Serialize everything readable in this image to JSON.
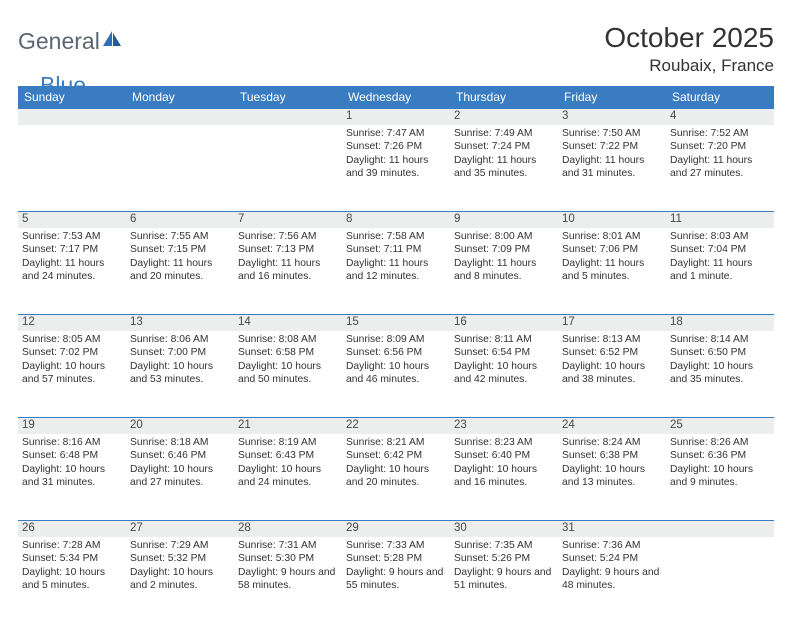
{
  "brand": {
    "name_part1": "General",
    "name_part2": "Blue"
  },
  "title": "October 2025",
  "location": "Roubaix, France",
  "colors": {
    "header_bg": "#3a7cc2",
    "header_text": "#ffffff",
    "daynum_bg": "#eceded",
    "text": "#333333",
    "border": "#3a7cc2",
    "brand_gray": "#5b6670",
    "brand_blue": "#3a7cc2"
  },
  "day_headers": [
    "Sunday",
    "Monday",
    "Tuesday",
    "Wednesday",
    "Thursday",
    "Friday",
    "Saturday"
  ],
  "weeks": [
    [
      null,
      null,
      null,
      {
        "n": "1",
        "sr": "7:47 AM",
        "ss": "7:26 PM",
        "dl": "11 hours and 39 minutes."
      },
      {
        "n": "2",
        "sr": "7:49 AM",
        "ss": "7:24 PM",
        "dl": "11 hours and 35 minutes."
      },
      {
        "n": "3",
        "sr": "7:50 AM",
        "ss": "7:22 PM",
        "dl": "11 hours and 31 minutes."
      },
      {
        "n": "4",
        "sr": "7:52 AM",
        "ss": "7:20 PM",
        "dl": "11 hours and 27 minutes."
      }
    ],
    [
      {
        "n": "5",
        "sr": "7:53 AM",
        "ss": "7:17 PM",
        "dl": "11 hours and 24 minutes."
      },
      {
        "n": "6",
        "sr": "7:55 AM",
        "ss": "7:15 PM",
        "dl": "11 hours and 20 minutes."
      },
      {
        "n": "7",
        "sr": "7:56 AM",
        "ss": "7:13 PM",
        "dl": "11 hours and 16 minutes."
      },
      {
        "n": "8",
        "sr": "7:58 AM",
        "ss": "7:11 PM",
        "dl": "11 hours and 12 minutes."
      },
      {
        "n": "9",
        "sr": "8:00 AM",
        "ss": "7:09 PM",
        "dl": "11 hours and 8 minutes."
      },
      {
        "n": "10",
        "sr": "8:01 AM",
        "ss": "7:06 PM",
        "dl": "11 hours and 5 minutes."
      },
      {
        "n": "11",
        "sr": "8:03 AM",
        "ss": "7:04 PM",
        "dl": "11 hours and 1 minute."
      }
    ],
    [
      {
        "n": "12",
        "sr": "8:05 AM",
        "ss": "7:02 PM",
        "dl": "10 hours and 57 minutes."
      },
      {
        "n": "13",
        "sr": "8:06 AM",
        "ss": "7:00 PM",
        "dl": "10 hours and 53 minutes."
      },
      {
        "n": "14",
        "sr": "8:08 AM",
        "ss": "6:58 PM",
        "dl": "10 hours and 50 minutes."
      },
      {
        "n": "15",
        "sr": "8:09 AM",
        "ss": "6:56 PM",
        "dl": "10 hours and 46 minutes."
      },
      {
        "n": "16",
        "sr": "8:11 AM",
        "ss": "6:54 PM",
        "dl": "10 hours and 42 minutes."
      },
      {
        "n": "17",
        "sr": "8:13 AM",
        "ss": "6:52 PM",
        "dl": "10 hours and 38 minutes."
      },
      {
        "n": "18",
        "sr": "8:14 AM",
        "ss": "6:50 PM",
        "dl": "10 hours and 35 minutes."
      }
    ],
    [
      {
        "n": "19",
        "sr": "8:16 AM",
        "ss": "6:48 PM",
        "dl": "10 hours and 31 minutes."
      },
      {
        "n": "20",
        "sr": "8:18 AM",
        "ss": "6:46 PM",
        "dl": "10 hours and 27 minutes."
      },
      {
        "n": "21",
        "sr": "8:19 AM",
        "ss": "6:43 PM",
        "dl": "10 hours and 24 minutes."
      },
      {
        "n": "22",
        "sr": "8:21 AM",
        "ss": "6:42 PM",
        "dl": "10 hours and 20 minutes."
      },
      {
        "n": "23",
        "sr": "8:23 AM",
        "ss": "6:40 PM",
        "dl": "10 hours and 16 minutes."
      },
      {
        "n": "24",
        "sr": "8:24 AM",
        "ss": "6:38 PM",
        "dl": "10 hours and 13 minutes."
      },
      {
        "n": "25",
        "sr": "8:26 AM",
        "ss": "6:36 PM",
        "dl": "10 hours and 9 minutes."
      }
    ],
    [
      {
        "n": "26",
        "sr": "7:28 AM",
        "ss": "5:34 PM",
        "dl": "10 hours and 5 minutes."
      },
      {
        "n": "27",
        "sr": "7:29 AM",
        "ss": "5:32 PM",
        "dl": "10 hours and 2 minutes."
      },
      {
        "n": "28",
        "sr": "7:31 AM",
        "ss": "5:30 PM",
        "dl": "9 hours and 58 minutes."
      },
      {
        "n": "29",
        "sr": "7:33 AM",
        "ss": "5:28 PM",
        "dl": "9 hours and 55 minutes."
      },
      {
        "n": "30",
        "sr": "7:35 AM",
        "ss": "5:26 PM",
        "dl": "9 hours and 51 minutes."
      },
      {
        "n": "31",
        "sr": "7:36 AM",
        "ss": "5:24 PM",
        "dl": "9 hours and 48 minutes."
      },
      null
    ]
  ],
  "labels": {
    "sunrise": "Sunrise:",
    "sunset": "Sunset:",
    "daylight": "Daylight:"
  }
}
